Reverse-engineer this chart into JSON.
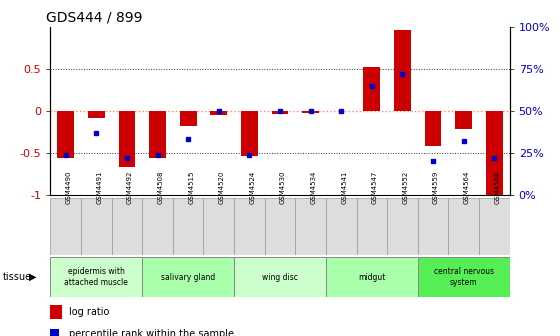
{
  "title": "GDS444 / 899",
  "samples": [
    "GSM4490",
    "GSM4491",
    "GSM4492",
    "GSM4508",
    "GSM4515",
    "GSM4520",
    "GSM4524",
    "GSM4530",
    "GSM4534",
    "GSM4541",
    "GSM4547",
    "GSM4552",
    "GSM4559",
    "GSM4564",
    "GSM4568"
  ],
  "log_ratio": [
    -0.56,
    -0.08,
    -0.67,
    -0.56,
    -0.18,
    -0.05,
    -0.54,
    -0.04,
    -0.03,
    0.0,
    0.52,
    0.96,
    -0.42,
    -0.22,
    -1.0
  ],
  "percentile": [
    24,
    37,
    22,
    24,
    33,
    50,
    24,
    50,
    50,
    50,
    65,
    72,
    20,
    32,
    22
  ],
  "tissue_groups": [
    {
      "label": "epidermis with\nattached muscle",
      "start": 0,
      "end": 3,
      "color": "#ccffcc"
    },
    {
      "label": "salivary gland",
      "start": 3,
      "end": 6,
      "color": "#aaffaa"
    },
    {
      "label": "wing disc",
      "start": 6,
      "end": 9,
      "color": "#ccffcc"
    },
    {
      "label": "midgut",
      "start": 9,
      "end": 12,
      "color": "#aaffaa"
    },
    {
      "label": "central nervous\nsystem",
      "start": 12,
      "end": 15,
      "color": "#55ee55"
    }
  ],
  "bar_color": "#cc0000",
  "dot_color": "#0000cc",
  "zero_line_color": "#ff8888",
  "grid_color": "#333333",
  "ylim": [
    -1.0,
    1.0
  ],
  "yticks_left": [
    -1,
    -0.5,
    0,
    0.5
  ],
  "yticks_right_vals": [
    0,
    25,
    50,
    75,
    100
  ],
  "yticks_right_labels": [
    "0%",
    "25%",
    "50%",
    "75%",
    "100%"
  ],
  "ylabel_left_color": "#cc0000",
  "ylabel_right_color": "#0000cc",
  "bar_width": 0.55,
  "sample_box_color": "#dddddd",
  "sample_box_edge": "#999999"
}
